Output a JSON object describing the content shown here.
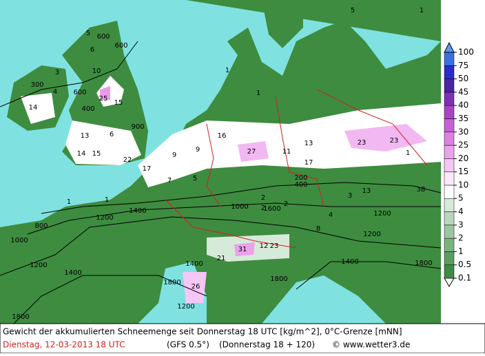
{
  "footer": {
    "line1": "Gewicht der akkumulierten Schneemenge seit Donnerstag 18 UTC [kg/m^2], 0°C-Grenze [mNN]",
    "date": "Dienstag, 12-03-2013   18 UTC",
    "model": "(GFS 0.5°)",
    "run": "(Donnerstag 18 + 120)",
    "credit": "© www.wetter3.de"
  },
  "legend": {
    "levels": [
      0.1,
      0.5,
      1,
      2,
      3,
      4,
      5,
      10,
      15,
      20,
      25,
      30,
      35,
      40,
      45,
      50,
      75,
      100
    ],
    "colors": [
      "#ffffff",
      "#3c8a44",
      "#5a9e60",
      "#7ab280",
      "#9ac6a0",
      "#b8d8bc",
      "#d6eada",
      "#ffffff",
      "#fde8fd",
      "#f6c6f6",
      "#eaa2ec",
      "#dc80e2",
      "#c860d6",
      "#a844c4",
      "#8030b4",
      "#4a24a4",
      "#2a2ad0",
      "#3a70e6",
      "#5a9ae8"
    ]
  },
  "map_labels": [
    "5",
    "600",
    "600",
    "6",
    "10",
    "3",
    "300",
    "4",
    "600",
    "25",
    "15",
    "400",
    "14",
    "900",
    "6",
    "13",
    "14",
    "15",
    "22",
    "16",
    "27",
    "11",
    "13",
    "23",
    "23",
    "17",
    "9",
    "9",
    "17",
    "7",
    "5",
    "200",
    "400",
    "2",
    "2",
    "1000",
    "1600",
    "3",
    "13",
    "38",
    "1",
    "1",
    "1200",
    "1400",
    "800",
    "1000",
    "1200",
    "1400",
    "4",
    "8",
    "21",
    "31",
    "23",
    "12",
    "1400",
    "1800",
    "26",
    "1200",
    "1400",
    "1200",
    "1800",
    "1800",
    "1800",
    "1",
    "5",
    "1",
    "1",
    "1200",
    "2",
    "1"
  ]
}
